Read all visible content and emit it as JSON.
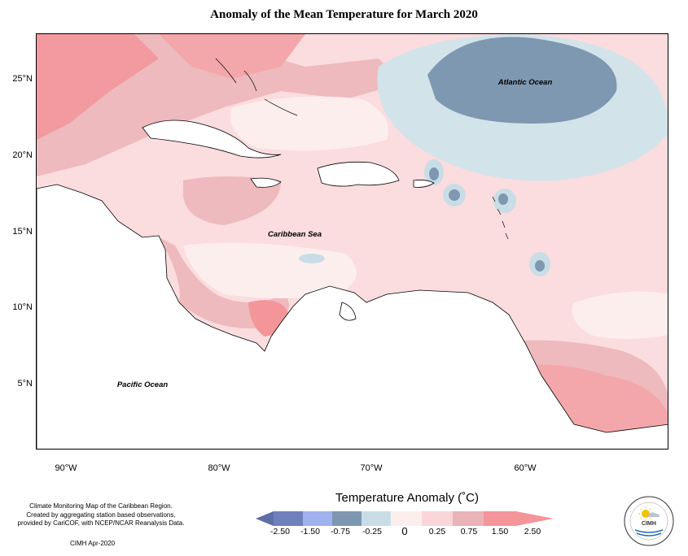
{
  "title": "Anomaly of the Mean Temperature for March 2020",
  "map_labels": {
    "atlantic": "Atlantic Ocean",
    "caribbean": "Caribbean Sea",
    "pacific": "Pacific Ocean"
  },
  "axes": {
    "latitude_ticks": [
      "25°N",
      "20°N",
      "15°N",
      "10°N",
      "5°N"
    ],
    "longitude_ticks": [
      "90°W",
      "80°W",
      "70°W",
      "60°W"
    ]
  },
  "legend": {
    "title": "Temperature Anomaly (˚C)",
    "ticks": [
      "-2.50",
      "-1.50",
      "-0.75",
      "-0.25",
      "0",
      "0.25",
      "0.75",
      "1.50",
      "2.50"
    ],
    "colors": [
      "#5d6fa6",
      "#7f93cf",
      "#9fb2ef",
      "#7d97b0",
      "#c9dde6",
      "#fdeeee",
      "#fad6da",
      "#eab3b7",
      "#f4959a"
    ]
  },
  "credits": [
    "Climate Monitoring Map of the Caribbean Region.",
    "Created by aggregating station based observations,",
    "provided by CariCOF, with NCEP/NCAR Reanalysis Data."
  ],
  "credit_date": "CIMH Apr-2020",
  "logo": {
    "name": "CIMH",
    "icon": "cimh-logo-icon"
  }
}
